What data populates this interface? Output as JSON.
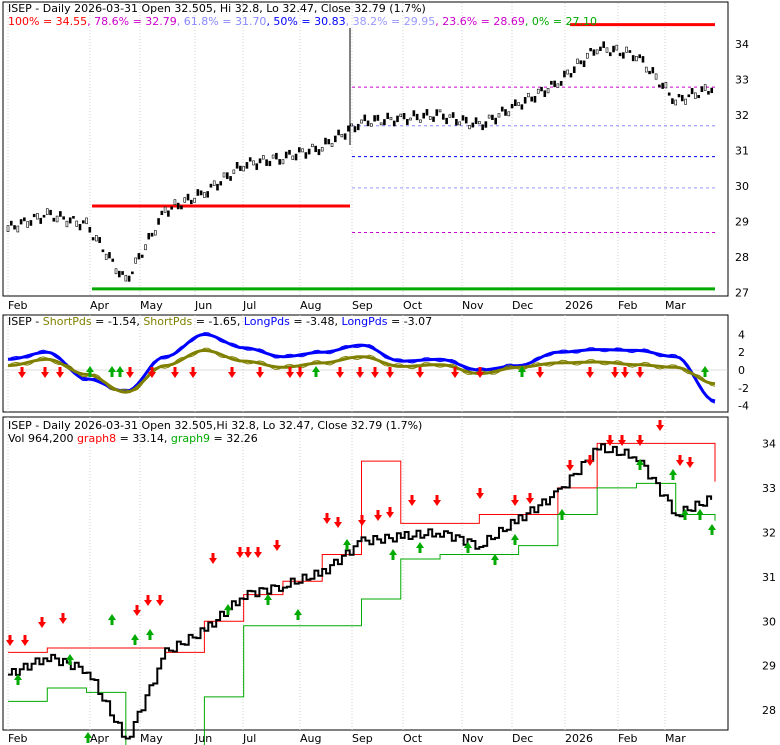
{
  "colors": {
    "up": "#ff0000",
    "down": "#00aa00",
    "blue": "#0000ff",
    "olive": "#808000",
    "magenta": "#cc00cc",
    "gray": "#808080",
    "text": "#000000",
    "fib38": "#9999ff",
    "fib61": "#8888ff"
  },
  "panel1": {
    "title": "ISEP - Daily 2026-03-31 Open 32.505, Hi 32.8, Lo 32.47, Close 32.79 (1.7%)",
    "fib_legend": [
      {
        "label": "100% = 34.55",
        "color": "#ff0000"
      },
      {
        "label": "78.6% = 32.79",
        "color": "#cc00cc"
      },
      {
        "label": "61.8% = 31.70",
        "color": "#8888ff"
      },
      {
        "label": "50% = 30.83",
        "color": "#0000ff"
      },
      {
        "label": "38.2% = 29.95",
        "color": "#9999ff"
      },
      {
        "label": "23.6% = 28.69",
        "color": "#cc00cc"
      },
      {
        "label": "0% = 27.10",
        "color": "#00aa00"
      }
    ],
    "y_ticks": [
      "34",
      "33",
      "32",
      "31",
      "30",
      "29",
      "28",
      "27"
    ]
  },
  "panel2": {
    "title_parts": [
      {
        "text": "ISEP - ",
        "color": "#000000"
      },
      {
        "text": "ShortPds",
        "color": "#808000"
      },
      {
        "text": " = -1.54, ",
        "color": "#000000"
      },
      {
        "text": "ShortPds",
        "color": "#808000"
      },
      {
        "text": " = -1.65, ",
        "color": "#000000"
      },
      {
        "text": "LongPds",
        "color": "#0000ff"
      },
      {
        "text": " = -3.48, ",
        "color": "#000000"
      },
      {
        "text": "LongPds",
        "color": "#0000ff"
      },
      {
        "text": " = -3.07",
        "color": "#000000"
      }
    ],
    "y_ticks": [
      "4",
      "2",
      "0",
      "-2",
      "-4"
    ]
  },
  "panel3": {
    "title": "ISEP - Daily 2026-03-31 Open 32.505,Hi 32.8, Lo 32.47, Close 32.79 (1.7%)",
    "legend_parts": [
      {
        "text": "Vol 964,200 ",
        "color": "#000000"
      },
      {
        "text": "graph8",
        "color": "#ff0000"
      },
      {
        "text": " = 33.14, ",
        "color": "#000000"
      },
      {
        "text": "graph9",
        "color": "#00aa00"
      },
      {
        "text": " = 32.26",
        "color": "#000000"
      }
    ],
    "y_ticks": [
      "34",
      "33",
      "32",
      "31",
      "30",
      "29",
      "28"
    ]
  },
  "x_labels": [
    "Feb",
    "Apr",
    "May",
    "Jun",
    "Jul",
    "Aug",
    "Sep",
    "Oct",
    "Nov",
    "Dec",
    "2026",
    "Feb",
    "Mar"
  ],
  "chart_data": [
    {
      "type": "candlestick",
      "title": "ISEP - Daily 2026-03-31 Open 32.505, Hi 32.8, Lo 32.47, Close 32.79 (1.7%)",
      "ylim": [
        26.9,
        34.4
      ],
      "fib_levels": [
        {
          "label": "100%",
          "value": 34.55
        },
        {
          "label": "78.6%",
          "value": 32.79
        },
        {
          "label": "61.8%",
          "value": 31.7
        },
        {
          "label": "50%",
          "value": 30.83
        },
        {
          "label": "38.2%",
          "value": 29.95
        },
        {
          "label": "23.6%",
          "value": 28.69
        },
        {
          "label": "0%",
          "value": 27.1
        }
      ],
      "x": [
        "Feb",
        "Mar",
        "Apr-early",
        "Apr-low",
        "Apr-late",
        "May",
        "Jun",
        "Jul",
        "Aug-early",
        "Aug",
        "Sep",
        "Oct",
        "Nov",
        "Dec",
        "Jan",
        "Feb",
        "Feb-late",
        "Mar",
        "Mar-end"
      ],
      "close": [
        28.8,
        29.2,
        28.9,
        27.3,
        29.3,
        29.8,
        30.6,
        30.8,
        31.1,
        31.8,
        31.9,
        32.0,
        31.7,
        32.3,
        32.9,
        33.9,
        33.7,
        32.4,
        32.79
      ]
    },
    {
      "type": "line",
      "title": "ISEP - ShortPds = -1.54, ShortPds = -1.65, LongPds = -3.48, LongPds = -3.07",
      "ylim": [
        -4.5,
        4.5
      ],
      "series": [
        {
          "name": "ShortPds",
          "values": [
            0.5,
            1.2,
            -0.5,
            -2.5,
            0.5,
            2.2,
            1.0,
            0.3,
            0.8,
            1.5,
            0.4,
            0.6,
            -0.4,
            0.3,
            0.8,
            0.9,
            0.6,
            0.3,
            -1.54
          ]
        },
        {
          "name": "LongPds",
          "values": [
            1.2,
            2.0,
            -1.0,
            -2.4,
            1.5,
            4.0,
            2.5,
            1.5,
            2.0,
            2.8,
            1.0,
            1.2,
            0.0,
            0.5,
            2.0,
            2.3,
            2.2,
            1.5,
            -3.48
          ]
        }
      ]
    },
    {
      "type": "line",
      "title": "ISEP - Daily 2026-03-31 Open 32.505,Hi 32.8, Lo 32.47, Close 32.79 (1.7%)",
      "ylim": [
        27.6,
        34.3
      ],
      "series": [
        {
          "name": "graph8",
          "values": [
            29.3,
            29.4,
            29.4,
            29.4,
            29.3,
            30.0,
            30.6,
            30.9,
            31.5,
            33.6,
            32.2,
            32.2,
            32.4,
            32.4,
            33.0,
            34.0,
            34.0,
            34.0,
            33.14
          ]
        },
        {
          "name": "graph9",
          "values": [
            28.2,
            28.5,
            28.4,
            27.2,
            27.2,
            28.3,
            29.9,
            29.9,
            29.9,
            30.5,
            31.4,
            31.5,
            31.5,
            31.7,
            32.4,
            33.0,
            33.1,
            32.4,
            32.26
          ]
        }
      ]
    }
  ]
}
